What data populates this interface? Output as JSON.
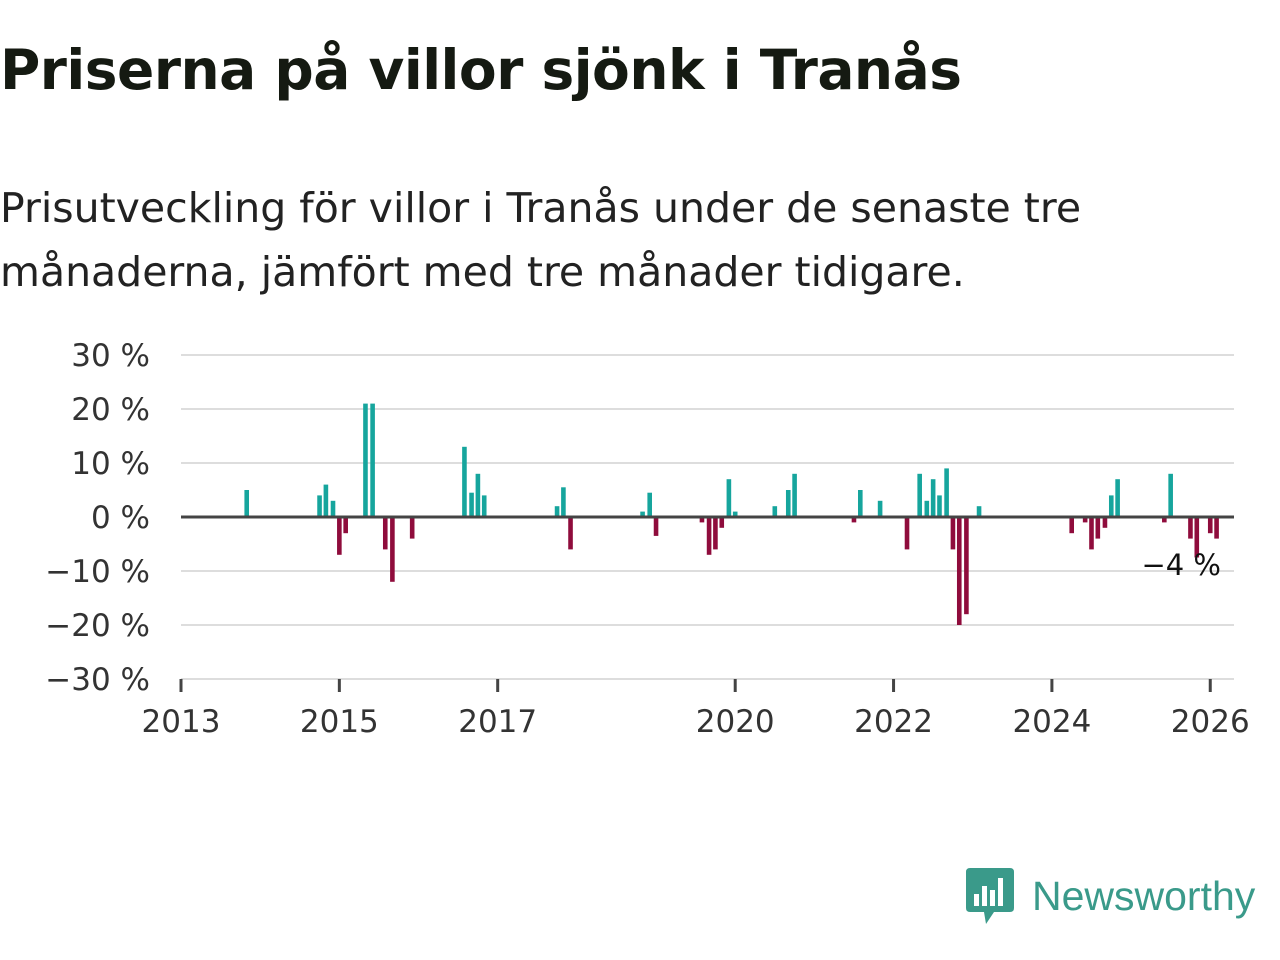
{
  "title": "Priserna på villor sjönk i Tranås",
  "subtitle": "Prisutveckling för villor i Tranås under de senaste tre månaderna, jämfört med tre månader tidigare.",
  "brand": {
    "name": "Newsworthy",
    "icon": "newsworthy-logo-icon"
  },
  "colors": {
    "positive": "#16a59d",
    "negative": "#8f0c3c",
    "grid": "#dddddd",
    "axis": "#444444",
    "brand": "#3a9a8a"
  },
  "chart_data": {
    "type": "bar",
    "title": "Priserna på villor sjönk i Tranås",
    "ylabel": "",
    "xlabel": "",
    "ylim": [
      -30,
      30
    ],
    "y_ticks": [
      30,
      20,
      10,
      0,
      -10,
      -20,
      -30
    ],
    "y_tick_labels": [
      "30 %",
      "20 %",
      "10 %",
      "0 %",
      "−10 %",
      "−20 %",
      "−30 %"
    ],
    "x_ticks": [
      2013,
      2015,
      2017,
      2020,
      2022,
      2024,
      2026
    ],
    "x_tick_labels": [
      "2013",
      "2015",
      "2017",
      "2020",
      "2022",
      "2024",
      "2026"
    ],
    "grid": true,
    "last_value_label": "−4 %",
    "series": [
      {
        "name": "Prisutveckling",
        "x": [
          2013.83,
          2014.75,
          2014.83,
          2014.92,
          2015.0,
          2015.08,
          2015.33,
          2015.42,
          2015.58,
          2015.67,
          2015.92,
          2016.58,
          2016.67,
          2016.75,
          2016.83,
          2017.75,
          2017.83,
          2017.92,
          2018.83,
          2018.92,
          2019.0,
          2019.58,
          2019.67,
          2019.75,
          2019.83,
          2019.92,
          2020.0,
          2020.5,
          2020.67,
          2020.75,
          2021.5,
          2021.58,
          2021.83,
          2022.17,
          2022.33,
          2022.42,
          2022.5,
          2022.58,
          2022.67,
          2022.75,
          2022.83,
          2022.92,
          2023.08,
          2024.25,
          2024.42,
          2024.5,
          2024.58,
          2024.67,
          2024.75,
          2024.83,
          2025.42,
          2025.5,
          2025.75,
          2025.83,
          2026.0,
          2026.08
        ],
        "values": [
          5,
          4,
          6,
          3,
          -7,
          -3,
          21,
          21,
          -6,
          -12,
          -4,
          13,
          4.5,
          8,
          4,
          2,
          5.5,
          -6,
          1,
          4.5,
          -3.5,
          -1,
          -7,
          -6,
          -2,
          7,
          1,
          2,
          5,
          8,
          -1,
          5,
          3,
          -6,
          8,
          3,
          7,
          4,
          9,
          -6,
          -20,
          -18,
          2,
          -3,
          -1,
          -6,
          -4,
          -2,
          4,
          7,
          -1,
          8,
          -4,
          -7.5,
          -3,
          -4
        ]
      }
    ]
  }
}
